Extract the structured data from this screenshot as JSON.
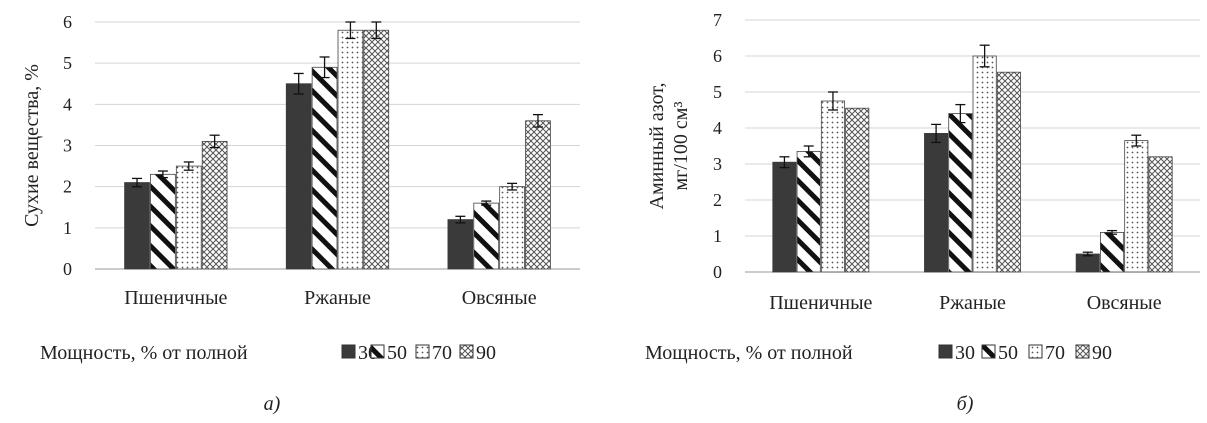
{
  "legend": {
    "title": "Мощность, % от полной",
    "entries": [
      "30",
      "50",
      "70",
      "90"
    ]
  },
  "chart_data": [
    {
      "type": "bar",
      "panel_label": "а)",
      "ylabel": "Сухие вещества, %",
      "ylim": [
        0,
        6
      ],
      "yticks": [
        "0",
        "1",
        "2",
        "3",
        "4",
        "5",
        "6"
      ],
      "categories": [
        "Пшеничные",
        "Ржаные",
        "Овсяные"
      ],
      "grid": true,
      "legend_position": "bottom",
      "series": [
        {
          "name": "30",
          "values": [
            2.1,
            4.5,
            1.2
          ],
          "errors": [
            0.1,
            0.25,
            0.08
          ]
        },
        {
          "name": "50",
          "values": [
            2.3,
            4.9,
            1.6
          ],
          "errors": [
            0.08,
            0.25,
            0.05
          ]
        },
        {
          "name": "70",
          "values": [
            2.5,
            5.8,
            2.0
          ],
          "errors": [
            0.1,
            0.2,
            0.08
          ]
        },
        {
          "name": "90",
          "values": [
            3.1,
            5.8,
            3.6
          ],
          "errors": [
            0.15,
            0.2,
            0.15
          ]
        }
      ]
    },
    {
      "type": "bar",
      "panel_label": "б)",
      "ylabel": "Аминный азот, мг/100 см³",
      "ylim": [
        0,
        7
      ],
      "yticks": [
        "0",
        "1",
        "2",
        "3",
        "4",
        "5",
        "6",
        "7"
      ],
      "categories": [
        "Пшеничные",
        "Ржаные",
        "Овсяные"
      ],
      "grid": true,
      "legend_position": "bottom",
      "series": [
        {
          "name": "30",
          "values": [
            3.05,
            3.85,
            0.5
          ],
          "errors": [
            0.15,
            0.25,
            0.05
          ]
        },
        {
          "name": "50",
          "values": [
            3.35,
            4.4,
            1.1
          ],
          "errors": [
            0.15,
            0.25,
            0.05
          ]
        },
        {
          "name": "70",
          "values": [
            4.75,
            6.0,
            3.65
          ],
          "errors": [
            0.25,
            0.3,
            0.15
          ]
        },
        {
          "name": "90",
          "values": [
            4.55,
            5.55,
            3.2
          ],
          "errors": [
            0,
            0,
            0
          ]
        }
      ]
    }
  ]
}
